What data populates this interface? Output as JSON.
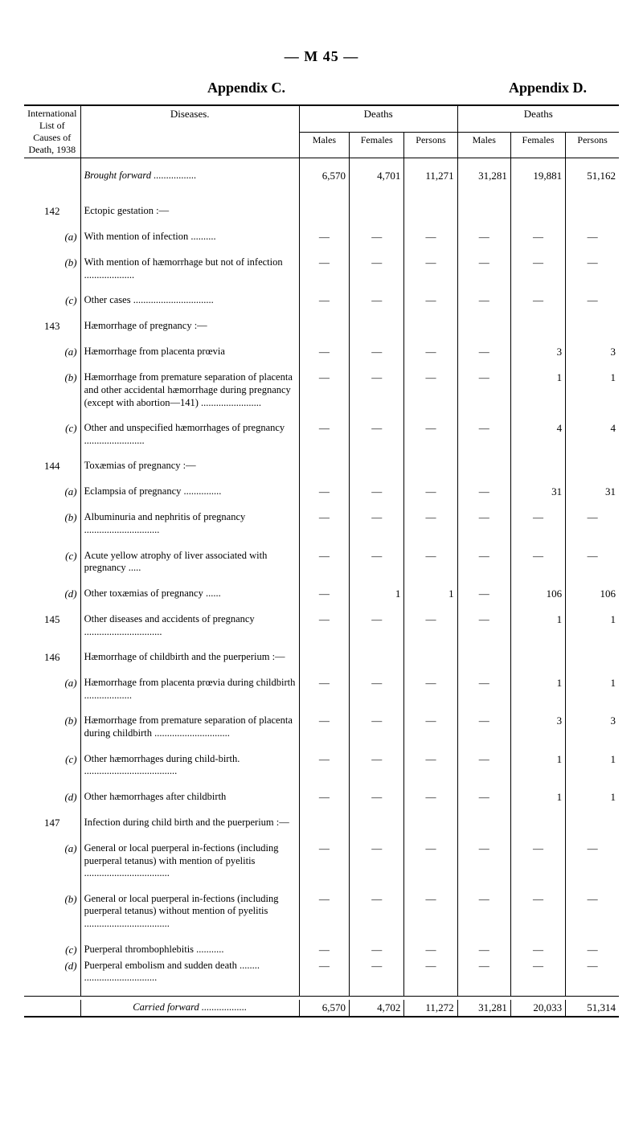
{
  "pageHeader": "— M 45 —",
  "appendixLeft": "Appendix C.",
  "appendixRight": "Appendix D.",
  "headers": {
    "intl1": "International",
    "intl2": "List of",
    "intl3": "Causes of",
    "intl4": "Death, 1938",
    "diseases": "Diseases.",
    "deaths": "Deaths",
    "males": "Males",
    "females": "Females",
    "persons": "Persons"
  },
  "broughtForward": {
    "label": "Brought forward",
    "c": {
      "males": "6,570",
      "females": "4,701",
      "persons": "11,271"
    },
    "d": {
      "males": "31,281",
      "females": "19,881",
      "persons": "51,162"
    }
  },
  "rows": [
    {
      "code": "142",
      "desc": "Ectopic gestation :—",
      "section": true
    },
    {
      "code": "(a)",
      "sub": true,
      "desc": "With mention of infection ..........",
      "c": {
        "m": "—",
        "f": "—",
        "p": "—"
      },
      "d": {
        "m": "—",
        "f": "—",
        "p": "—"
      }
    },
    {
      "code": "(b)",
      "sub": true,
      "desc": "With mention of hæmorrhage but not of infection ....................",
      "c": {
        "m": "—",
        "f": "—",
        "p": "—"
      },
      "d": {
        "m": "—",
        "f": "—",
        "p": "—"
      }
    },
    {
      "code": "(c)",
      "sub": true,
      "desc": "Other cases ................................",
      "c": {
        "m": "—",
        "f": "—",
        "p": "—"
      },
      "d": {
        "m": "—",
        "f": "—",
        "p": "—"
      }
    },
    {
      "code": "143",
      "desc": "Hæmorrhage of pregnancy :—",
      "section": true
    },
    {
      "code": "(a)",
      "sub": true,
      "desc": "Hæmorrhage from placenta prœvia",
      "c": {
        "m": "—",
        "f": "—",
        "p": "—"
      },
      "d": {
        "m": "—",
        "f": "3",
        "p": "3"
      }
    },
    {
      "code": "(b)",
      "sub": true,
      "desc": "Hæmorrhage from premature separation of placenta and other accidental hæmorrhage during pregnancy (except with abortion—141) ........................",
      "c": {
        "m": "—",
        "f": "—",
        "p": "—"
      },
      "d": {
        "m": "—",
        "f": "1",
        "p": "1"
      }
    },
    {
      "code": "(c)",
      "sub": true,
      "desc": "Other and unspecified hæmorrhages of pregnancy ........................",
      "c": {
        "m": "—",
        "f": "—",
        "p": "—"
      },
      "d": {
        "m": "—",
        "f": "4",
        "p": "4"
      }
    },
    {
      "code": "144",
      "desc": "Toxæmias of pregnancy :—",
      "section": true
    },
    {
      "code": "(a)",
      "sub": true,
      "desc": "Eclampsia of pregnancy ...............",
      "c": {
        "m": "—",
        "f": "—",
        "p": "—"
      },
      "d": {
        "m": "—",
        "f": "31",
        "p": "31"
      }
    },
    {
      "code": "(b)",
      "sub": true,
      "desc": "Albuminuria and nephritis of pregnancy ..............................",
      "c": {
        "m": "—",
        "f": "—",
        "p": "—"
      },
      "d": {
        "m": "—",
        "f": "—",
        "p": "—"
      }
    },
    {
      "code": "(c)",
      "sub": true,
      "desc": "Acute yellow atrophy of liver associated with pregnancy .....",
      "c": {
        "m": "—",
        "f": "—",
        "p": "—"
      },
      "d": {
        "m": "—",
        "f": "—",
        "p": "—"
      }
    },
    {
      "code": "(d)",
      "sub": true,
      "desc": "Other toxæmias of pregnancy ......",
      "c": {
        "m": "—",
        "f": "1",
        "p": "1"
      },
      "d": {
        "m": "—",
        "f": "106",
        "p": "106"
      }
    },
    {
      "code": "145",
      "desc": "Other diseases and accidents of pregnancy ...............................",
      "c": {
        "m": "—",
        "f": "—",
        "p": "—"
      },
      "d": {
        "m": "—",
        "f": "1",
        "p": "1"
      }
    },
    {
      "code": "146",
      "desc": "Hæmorrhage of childbirth and the puerperium :—",
      "section": true
    },
    {
      "code": "(a)",
      "sub": true,
      "desc": "Hæmorrhage from placenta prœvia during childbirth ...................",
      "c": {
        "m": "—",
        "f": "—",
        "p": "—"
      },
      "d": {
        "m": "—",
        "f": "1",
        "p": "1"
      }
    },
    {
      "code": "(b)",
      "sub": true,
      "desc": "Hæmorrhage from premature separation of placenta during childbirth ..............................",
      "c": {
        "m": "—",
        "f": "—",
        "p": "—"
      },
      "d": {
        "m": "—",
        "f": "3",
        "p": "3"
      }
    },
    {
      "code": "(c)",
      "sub": true,
      "desc": "Other hæmorrhages during child-birth. .....................................",
      "c": {
        "m": "—",
        "f": "—",
        "p": "—"
      },
      "d": {
        "m": "—",
        "f": "1",
        "p": "1"
      }
    },
    {
      "code": "(d)",
      "sub": true,
      "desc": "Other hæmorrhages after childbirth",
      "c": {
        "m": "—",
        "f": "—",
        "p": "—"
      },
      "d": {
        "m": "—",
        "f": "1",
        "p": "1"
      }
    },
    {
      "code": "147",
      "desc": "Infection during child birth and the puerperium :—",
      "section": true
    },
    {
      "code": "(a)",
      "sub": true,
      "desc": "General or local puerperal in-fections (including puerperal tetanus) with mention of pyelitis ..................................",
      "c": {
        "m": "—",
        "f": "—",
        "p": "—"
      },
      "d": {
        "m": "—",
        "f": "—",
        "p": "—"
      }
    },
    {
      "code": "(b)",
      "sub": true,
      "desc": "General or local puerperal in-fections (including puerperal tetanus) without mention of pyelitis ..................................",
      "c": {
        "m": "—",
        "f": "—",
        "p": "—"
      },
      "d": {
        "m": "—",
        "f": "—",
        "p": "—"
      }
    },
    {
      "code": "(c)",
      "sub": true,
      "desc": "Puerperal thrombophlebitis ...........",
      "c": {
        "m": "—",
        "f": "—",
        "p": "—"
      },
      "d": {
        "m": "—",
        "f": "—",
        "p": "—"
      },
      "tight": true
    },
    {
      "code": "(d)",
      "sub": true,
      "desc": "Puerperal embolism and sudden death ........ .............................",
      "c": {
        "m": "—",
        "f": "—",
        "p": "—"
      },
      "d": {
        "m": "—",
        "f": "—",
        "p": "—"
      }
    }
  ],
  "carriedForward": {
    "label": "Carried forward",
    "c": {
      "males": "6,570",
      "females": "4,702",
      "persons": "11,272"
    },
    "d": {
      "males": "31,281",
      "females": "20,033",
      "persons": "51,314"
    }
  },
  "style": {
    "pageWidth": 800,
    "pageHeight": 1401,
    "fontFamily": "Times New Roman",
    "textColor": "#000000",
    "bgColor": "#ffffff",
    "headerFontSize": 18,
    "bodyFontSize": 12.5,
    "ruleThick": 2.5,
    "ruleThin": 1
  }
}
